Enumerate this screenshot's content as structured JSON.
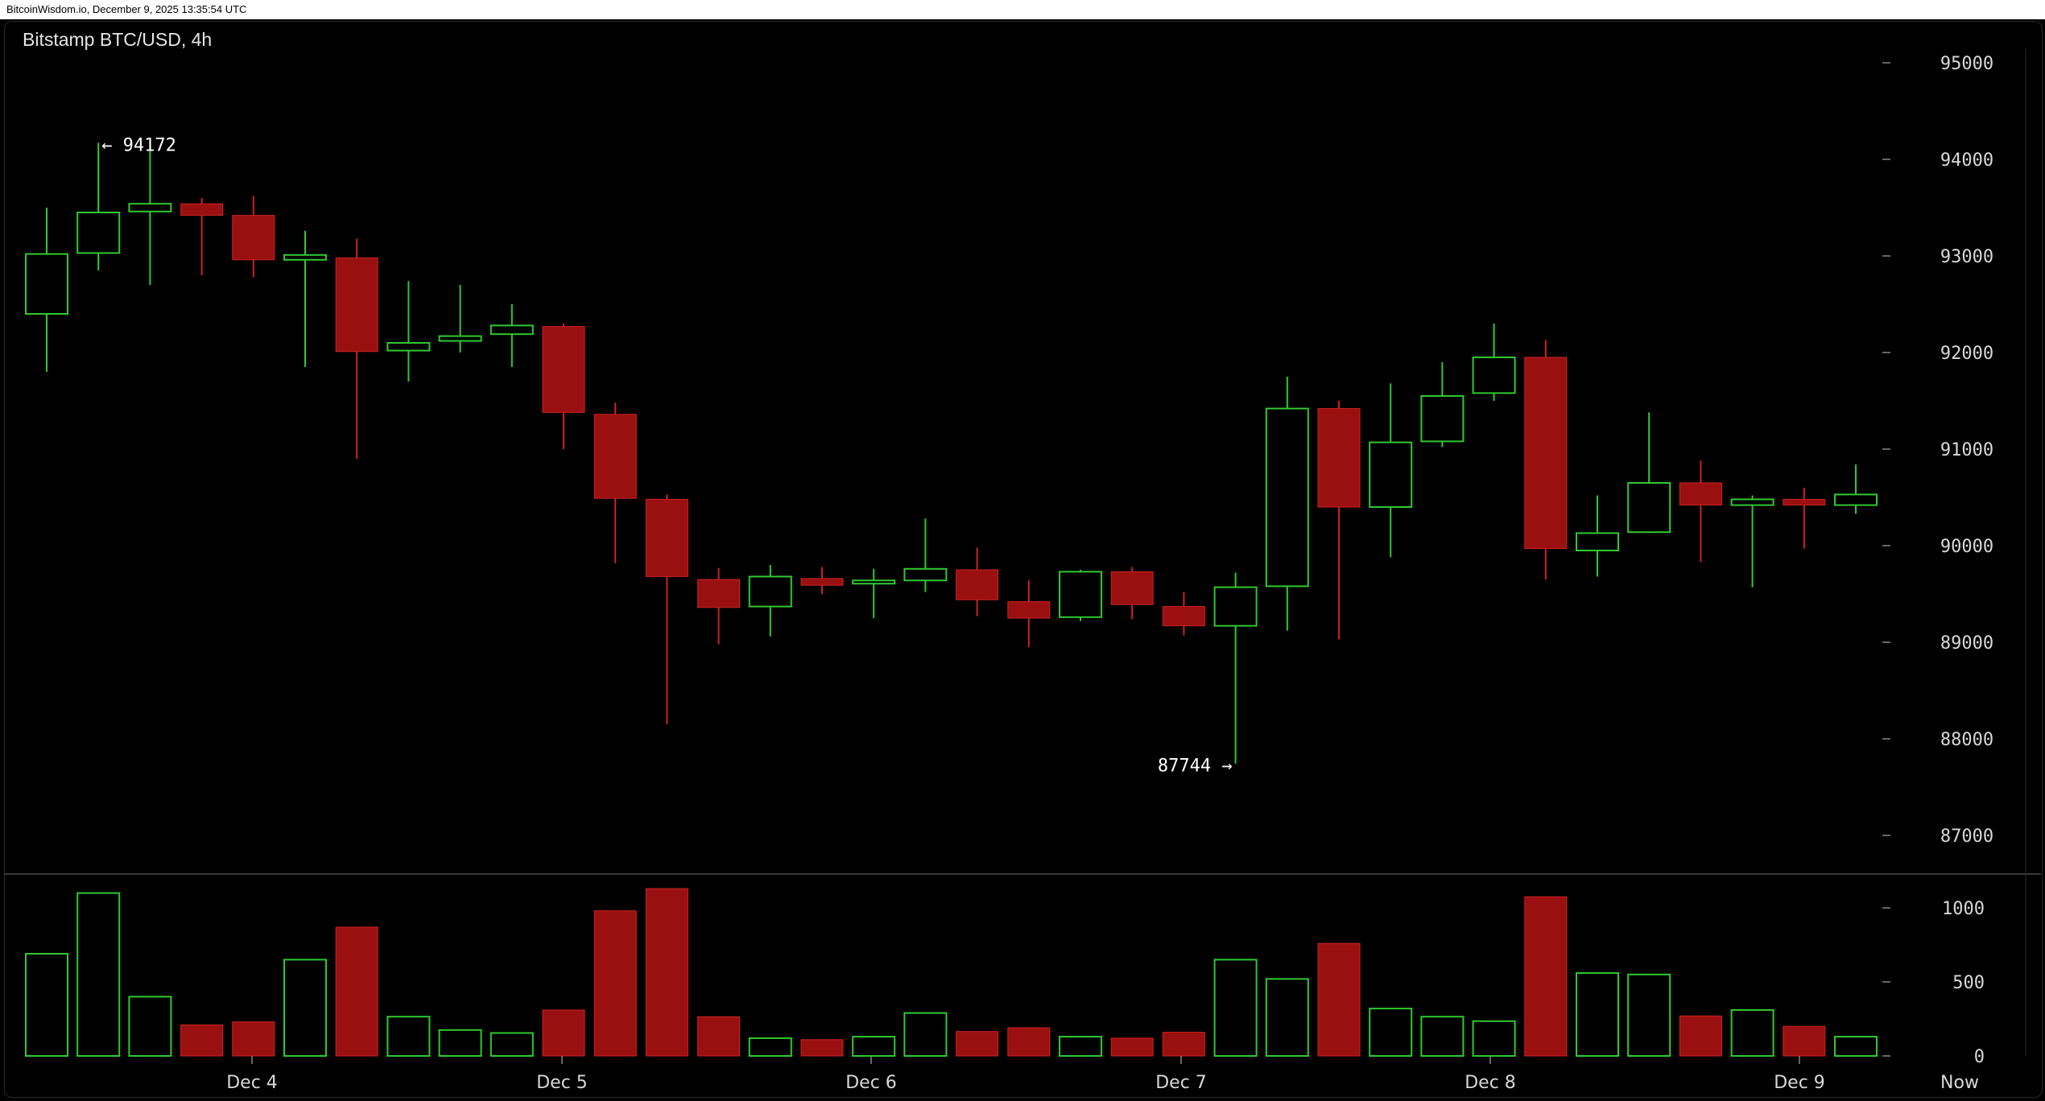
{
  "header": {
    "watermark": "BitcoinWisdom.io, December 9, 2025 13:35:54 UTC",
    "title": "Bitstamp BTC/USD, 4h"
  },
  "colors": {
    "up": "#2fc92f",
    "down_fill": "#9a1010",
    "down_wick": "#cc2222",
    "background": "#000000",
    "axis": "#d8d8d8"
  },
  "chart_data": {
    "type": "candlestick",
    "interval": "4h",
    "price_axis": {
      "ticks": [
        87000,
        88000,
        89000,
        90000,
        91000,
        92000,
        93000,
        94000,
        95000
      ],
      "range": [
        86000,
        95700
      ]
    },
    "volume_axis": {
      "ticks": [
        0,
        500,
        1000
      ],
      "range": [
        0,
        1130
      ]
    },
    "x_labels": [
      "Dec 4",
      "Dec 5",
      "Dec 6",
      "Dec 7",
      "Dec 8",
      "Dec 9",
      "Now"
    ],
    "annotations": [
      {
        "text": "← 94172",
        "price": 94172,
        "candle": 1
      },
      {
        "text": "87744 →",
        "price": 87744,
        "candle": 23
      }
    ],
    "candles": [
      {
        "o": 92400,
        "h": 93500,
        "l": 91800,
        "c": 93020,
        "v": 690
      },
      {
        "o": 93030,
        "h": 94172,
        "l": 92850,
        "c": 93450,
        "v": 1100
      },
      {
        "o": 93460,
        "h": 94100,
        "l": 92700,
        "c": 93540,
        "v": 400
      },
      {
        "o": 93540,
        "h": 93600,
        "l": 92800,
        "c": 93420,
        "v": 210
      },
      {
        "o": 93420,
        "h": 93620,
        "l": 92780,
        "c": 92960,
        "v": 230
      },
      {
        "o": 92960,
        "h": 93260,
        "l": 91850,
        "c": 93010,
        "v": 650
      },
      {
        "o": 92980,
        "h": 93180,
        "l": 90900,
        "c": 92010,
        "v": 870
      },
      {
        "o": 92020,
        "h": 92740,
        "l": 91700,
        "c": 92100,
        "v": 265
      },
      {
        "o": 92120,
        "h": 92700,
        "l": 92000,
        "c": 92170,
        "v": 175
      },
      {
        "o": 92190,
        "h": 92500,
        "l": 91850,
        "c": 92280,
        "v": 155
      },
      {
        "o": 92270,
        "h": 92300,
        "l": 91000,
        "c": 91380,
        "v": 310
      },
      {
        "o": 91360,
        "h": 91480,
        "l": 89820,
        "c": 90490,
        "v": 980
      },
      {
        "o": 90480,
        "h": 90530,
        "l": 88150,
        "c": 89680,
        "v": 1130
      },
      {
        "o": 89650,
        "h": 89770,
        "l": 88980,
        "c": 89360,
        "v": 265
      },
      {
        "o": 89370,
        "h": 89800,
        "l": 89060,
        "c": 89680,
        "v": 120
      },
      {
        "o": 89660,
        "h": 89780,
        "l": 89500,
        "c": 89590,
        "v": 110
      },
      {
        "o": 89620,
        "h": 89760,
        "l": 89250,
        "c": 89640,
        "v": 130
      },
      {
        "o": 89640,
        "h": 90280,
        "l": 89520,
        "c": 89760,
        "v": 290
      },
      {
        "o": 89750,
        "h": 89980,
        "l": 89270,
        "c": 89440,
        "v": 165
      },
      {
        "o": 89420,
        "h": 89640,
        "l": 88950,
        "c": 89250,
        "v": 190
      },
      {
        "o": 89260,
        "h": 89750,
        "l": 89220,
        "c": 89730,
        "v": 130
      },
      {
        "o": 89730,
        "h": 89780,
        "l": 89240,
        "c": 89390,
        "v": 120
      },
      {
        "o": 89370,
        "h": 89520,
        "l": 89070,
        "c": 89170,
        "v": 160
      },
      {
        "o": 89170,
        "h": 89720,
        "l": 87744,
        "c": 89570,
        "v": 650
      },
      {
        "o": 89580,
        "h": 91750,
        "l": 89120,
        "c": 91420,
        "v": 520
      },
      {
        "o": 91420,
        "h": 91500,
        "l": 89030,
        "c": 90400,
        "v": 760
      },
      {
        "o": 90400,
        "h": 91680,
        "l": 89880,
        "c": 91070,
        "v": 320
      },
      {
        "o": 91080,
        "h": 91900,
        "l": 91020,
        "c": 91550,
        "v": 265
      },
      {
        "o": 91580,
        "h": 92300,
        "l": 91500,
        "c": 91950,
        "v": 235
      },
      {
        "o": 91950,
        "h": 92130,
        "l": 89650,
        "c": 89970,
        "v": 1075
      },
      {
        "o": 89950,
        "h": 90520,
        "l": 89680,
        "c": 90130,
        "v": 560
      },
      {
        "o": 90140,
        "h": 91380,
        "l": 90130,
        "c": 90650,
        "v": 550
      },
      {
        "o": 90650,
        "h": 90880,
        "l": 89830,
        "c": 90420,
        "v": 270
      },
      {
        "o": 90420,
        "h": 90520,
        "l": 89570,
        "c": 90480,
        "v": 310
      },
      {
        "o": 90480,
        "h": 90600,
        "l": 89970,
        "c": 90420,
        "v": 200
      },
      {
        "o": 90420,
        "h": 90840,
        "l": 90330,
        "c": 90530,
        "v": 130
      }
    ]
  }
}
